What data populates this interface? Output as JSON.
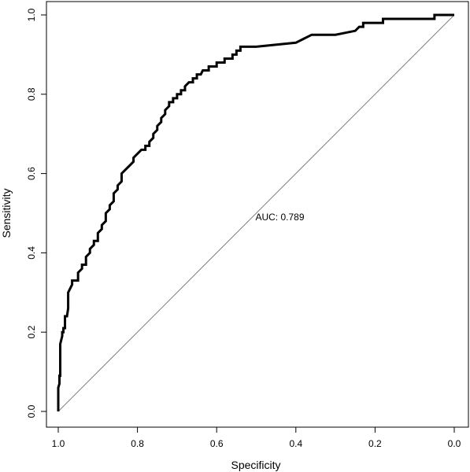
{
  "chart_data": {
    "type": "line",
    "xlabel": "Specificity",
    "ylabel": "Sensitivity",
    "xlim": [
      1.0,
      0.0
    ],
    "ylim": [
      0.0,
      1.0
    ],
    "x_reversed": true,
    "x_ticks": [
      "1.0",
      "0.8",
      "0.6",
      "0.4",
      "0.2",
      "0.0"
    ],
    "x_tick_values": [
      1.0,
      0.8,
      0.6,
      0.4,
      0.2,
      0.0
    ],
    "y_ticks": [
      "0.0",
      "0.2",
      "0.4",
      "0.6",
      "0.8",
      "1.0"
    ],
    "y_tick_values": [
      0.0,
      0.2,
      0.4,
      0.6,
      0.8,
      1.0
    ],
    "grid": false,
    "legend": "none",
    "annotation": {
      "text": "AUC: 0.789",
      "x": 0.5,
      "y": 0.49
    },
    "reference_line": {
      "from": [
        1.0,
        0.0
      ],
      "to": [
        0.0,
        1.0
      ],
      "color": "#808080"
    },
    "colors": {
      "curve": "#000000",
      "reference": "#808080",
      "frame": "#000000"
    },
    "series": [
      {
        "x": [
          1.0,
          1.0,
          1.0,
          1.0,
          0.997,
          0.997,
          0.995,
          0.995,
          0.99,
          0.99,
          0.987,
          0.987,
          0.983,
          0.983,
          0.978,
          0.975,
          0.975,
          0.965,
          0.965,
          0.95,
          0.95,
          0.94,
          0.94,
          0.93,
          0.93,
          0.92,
          0.92,
          0.91,
          0.91,
          0.9,
          0.9,
          0.89,
          0.89,
          0.88,
          0.88,
          0.87,
          0.87,
          0.86,
          0.86,
          0.85,
          0.85,
          0.84,
          0.84,
          0.83,
          0.83,
          0.82,
          0.82,
          0.81,
          0.81,
          0.8,
          0.8,
          0.79,
          0.78,
          0.78,
          0.77,
          0.77,
          0.76,
          0.76,
          0.75,
          0.75,
          0.74,
          0.74,
          0.73,
          0.73,
          0.72,
          0.72,
          0.71,
          0.71,
          0.7,
          0.7,
          0.69,
          0.69,
          0.68,
          0.68,
          0.67,
          0.66,
          0.66,
          0.65,
          0.65,
          0.64,
          0.64,
          0.635,
          0.63,
          0.62,
          0.62,
          0.6,
          0.6,
          0.58,
          0.58,
          0.56,
          0.56,
          0.55,
          0.55,
          0.54,
          0.54,
          0.53,
          0.53,
          0.52,
          0.52,
          0.5,
          0.5,
          0.4,
          0.4,
          0.38,
          0.38,
          0.36,
          0.36,
          0.3,
          0.3,
          0.25,
          0.25,
          0.24,
          0.24,
          0.23,
          0.23,
          0.22,
          0.22,
          0.21,
          0.21,
          0.18,
          0.18,
          0.15,
          0.15,
          0.09,
          0.09,
          0.05,
          0.05,
          0.0
        ],
        "y": [
          0.0,
          0.03,
          0.05,
          0.06,
          0.07,
          0.09,
          0.09,
          0.17,
          0.19,
          0.2,
          0.2,
          0.21,
          0.21,
          0.24,
          0.24,
          0.26,
          0.3,
          0.32,
          0.33,
          0.33,
          0.35,
          0.36,
          0.37,
          0.37,
          0.39,
          0.4,
          0.41,
          0.42,
          0.43,
          0.43,
          0.45,
          0.46,
          0.47,
          0.48,
          0.5,
          0.51,
          0.52,
          0.53,
          0.55,
          0.56,
          0.57,
          0.58,
          0.6,
          0.61,
          0.61,
          0.62,
          0.62,
          0.63,
          0.64,
          0.65,
          0.65,
          0.66,
          0.66,
          0.67,
          0.67,
          0.68,
          0.69,
          0.7,
          0.71,
          0.72,
          0.73,
          0.74,
          0.75,
          0.76,
          0.77,
          0.78,
          0.78,
          0.79,
          0.79,
          0.8,
          0.8,
          0.81,
          0.81,
          0.82,
          0.83,
          0.83,
          0.84,
          0.84,
          0.85,
          0.85,
          0.85,
          0.86,
          0.86,
          0.86,
          0.87,
          0.87,
          0.88,
          0.88,
          0.89,
          0.89,
          0.9,
          0.9,
          0.91,
          0.91,
          0.92,
          0.92,
          0.92,
          0.92,
          0.92,
          0.92,
          0.92,
          0.93,
          0.93,
          0.94,
          0.94,
          0.95,
          0.95,
          0.95,
          0.95,
          0.96,
          0.96,
          0.97,
          0.97,
          0.97,
          0.98,
          0.98,
          0.98,
          0.98,
          0.98,
          0.98,
          0.99,
          0.99,
          0.99,
          0.99,
          0.99,
          0.99,
          1.0,
          1.0
        ]
      }
    ]
  }
}
